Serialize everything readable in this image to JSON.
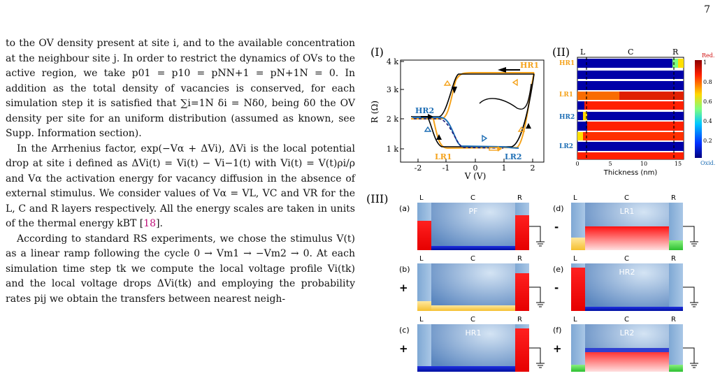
{
  "page_number": "7",
  "text": {
    "p1": "to the OV density present at site i, and to the available concentration at the neighbour site j. In order to restrict the dynamics of OVs to the active region, we take p01 = p10 = pNN+1 = pN+1N = 0. In addition as the total density of vacancies is conserved, for each simulation step it is satisfied that ∑i=1N δi = Nδ0, being δ0 the OV density per site for an uniform distribution (assumed as known, see Supp. Information section).",
    "p2": "In the Arrhenius factor, exp(−Vα + ΔVi), ΔVi is the local potential drop at site i defined as ΔVi(t) = Vi(t) − Vi−1(t) with Vi(t) = V(t)ρi/ρ and Vα the activation energy for vacancy diffusion in the absence of external stimulus. We consider values of Vα = VL, VC and VR for the L, C and R layers respectively. All the energy scales are taken in units of the thermal energy kBT [",
    "p2_cite": "18",
    "p2_end": "].",
    "p3": "According to standard RS experiments, we chose the stimulus V(t) as a linear ramp following the cycle 0 → Vm1 → −Vm2 → 0. At each simulation time step tk we compute the local voltage profile Vi(tk) and the local voltage drops ΔVi(tk) and employing the probability rates pij we obtain the transfers between nearest neigh-"
  },
  "figure": {
    "panel_I": {
      "label": "(I)",
      "ylabel": "R (Ω)",
      "xlabel": "V (V)",
      "yticks": [
        "1 k",
        "2 k",
        "3 k",
        "4 k"
      ],
      "xticks": [
        "-2",
        "-1",
        "0",
        "1",
        "2"
      ],
      "state_labels": [
        "HR1",
        "HR2",
        "LR1",
        "LR2"
      ],
      "colors": {
        "orange": "#f5a31c",
        "blue": "#1f6fb5",
        "black": "#000000",
        "navy": "#1a1a7a"
      }
    },
    "panel_II": {
      "label": "(II)",
      "region_labels": [
        "L",
        "C",
        "R"
      ],
      "row_labels": [
        "HR1",
        "LR1",
        "HR2",
        "LR2"
      ],
      "xlabel": "Thickness (nm)",
      "xticks": [
        "0",
        "5",
        "10",
        "15"
      ],
      "colorbar_top": "Red.",
      "colorbar_bottom": "Oxid.",
      "colorbar_ticks": [
        "1",
        "0.8",
        "0.6",
        "0.4",
        "0.2"
      ]
    },
    "panel_III": {
      "label": "(III)",
      "region_labels": [
        "L",
        "C",
        "R"
      ],
      "subpanels": [
        {
          "tag": "(a)",
          "state": "PF",
          "sign": ""
        },
        {
          "tag": "(b)",
          "state": "",
          "sign": "+"
        },
        {
          "tag": "(c)",
          "state": "HR1",
          "sign": "+"
        },
        {
          "tag": "(d)",
          "state": "LR1",
          "sign": "-"
        },
        {
          "tag": "(e)",
          "state": "HR2",
          "sign": "-"
        },
        {
          "tag": "(f)",
          "state": "LR2",
          "sign": "+"
        }
      ]
    }
  }
}
